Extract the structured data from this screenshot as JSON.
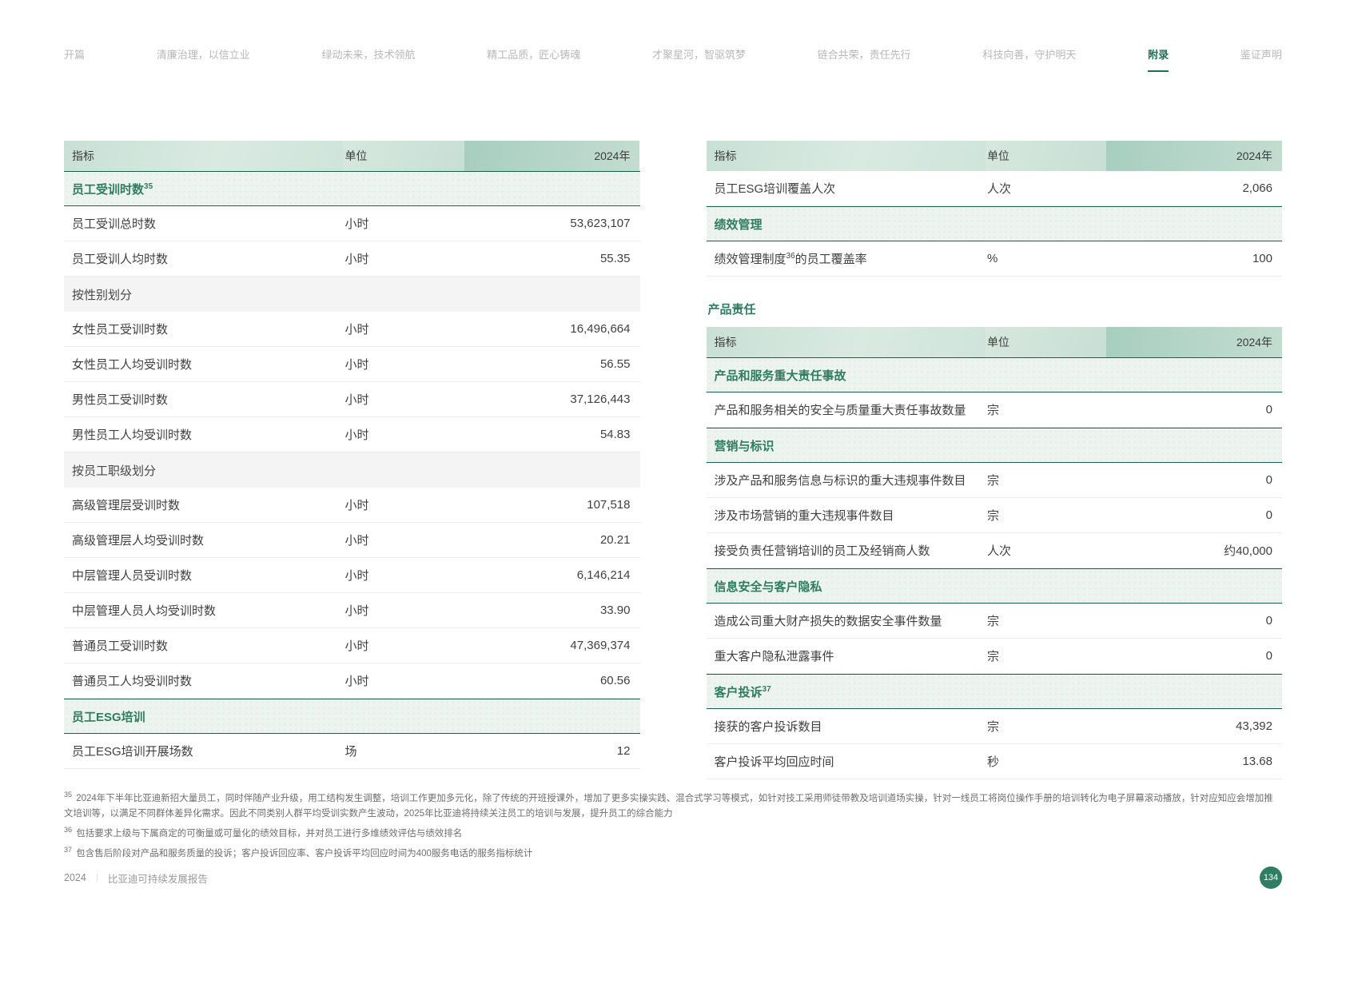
{
  "nav": {
    "items": [
      {
        "label": "开篇",
        "active": false
      },
      {
        "label": "清廉治理，以信立业",
        "active": false
      },
      {
        "label": "绿动未来，技术领航",
        "active": false
      },
      {
        "label": "精工品质，匠心铸魂",
        "active": false
      },
      {
        "label": "才聚星河，智驱筑梦",
        "active": false
      },
      {
        "label": "链合共荣，责任先行",
        "active": false
      },
      {
        "label": "科技向善，守护明天",
        "active": false
      },
      {
        "label": "附录",
        "active": true
      },
      {
        "label": "鉴证声明",
        "active": false
      }
    ]
  },
  "left_table": {
    "header": {
      "indicator": "指标",
      "unit": "单位",
      "year": "2024年"
    },
    "rows": [
      {
        "type": "section",
        "label": "员工受训时数",
        "sup": "35"
      },
      {
        "type": "data",
        "label": "员工受训总时数",
        "unit": "小时",
        "value": "53,623,107"
      },
      {
        "type": "data",
        "label": "员工受训人均时数",
        "unit": "小时",
        "value": "55.35"
      },
      {
        "type": "subsection",
        "label": "按性别划分"
      },
      {
        "type": "data",
        "label": "女性员工受训时数",
        "unit": "小时",
        "value": "16,496,664"
      },
      {
        "type": "data",
        "label": "女性员工人均受训时数",
        "unit": "小时",
        "value": "56.55"
      },
      {
        "type": "data",
        "label": "男性员工受训时数",
        "unit": "小时",
        "value": "37,126,443"
      },
      {
        "type": "data",
        "label": "男性员工人均受训时数",
        "unit": "小时",
        "value": "54.83"
      },
      {
        "type": "subsection",
        "label": "按员工职级划分"
      },
      {
        "type": "data",
        "label": "高级管理层受训时数",
        "unit": "小时",
        "value": "107,518"
      },
      {
        "type": "data",
        "label": "高级管理层人均受训时数",
        "unit": "小时",
        "value": "20.21"
      },
      {
        "type": "data",
        "label": "中层管理人员受训时数",
        "unit": "小时",
        "value": "6,146,214"
      },
      {
        "type": "data",
        "label": "中层管理人员人均受训时数",
        "unit": "小时",
        "value": "33.90"
      },
      {
        "type": "data",
        "label": "普通员工受训时数",
        "unit": "小时",
        "value": "47,369,374"
      },
      {
        "type": "data",
        "label": "普通员工人均受训时数",
        "unit": "小时",
        "value": "60.56"
      },
      {
        "type": "section",
        "label": "员工ESG培训"
      },
      {
        "type": "data",
        "label": "员工ESG培训开展场数",
        "unit": "场",
        "value": "12"
      }
    ]
  },
  "right_top_table": {
    "header": {
      "indicator": "指标",
      "unit": "单位",
      "year": "2024年"
    },
    "rows": [
      {
        "type": "data",
        "label": "员工ESG培训覆盖人次",
        "unit": "人次",
        "value": "2,066"
      },
      {
        "type": "section",
        "label": "绩效管理"
      },
      {
        "type": "data",
        "label": "绩效管理制度",
        "sup": "36",
        "label2": "的员工覆盖率",
        "unit": "%",
        "value": "100"
      }
    ]
  },
  "right_column": {
    "heading": "产品责任"
  },
  "right_bottom_table": {
    "header": {
      "indicator": "指标",
      "unit": "单位",
      "year": "2024年"
    },
    "rows": [
      {
        "type": "section",
        "label": "产品和服务重大责任事故"
      },
      {
        "type": "data",
        "label": "产品和服务相关的安全与质量重大责任事故数量",
        "unit": "宗",
        "value": "0"
      },
      {
        "type": "section",
        "label": "营销与标识"
      },
      {
        "type": "data",
        "label": "涉及产品和服务信息与标识的重大违规事件数目",
        "unit": "宗",
        "value": "0"
      },
      {
        "type": "data",
        "label": "涉及市场营销的重大违规事件数目",
        "unit": "宗",
        "value": "0"
      },
      {
        "type": "data",
        "label": "接受负责任营销培训的员工及经销商人数",
        "unit": "人次",
        "value": "约40,000"
      },
      {
        "type": "section",
        "label": "信息安全与客户隐私"
      },
      {
        "type": "data",
        "label": "造成公司重大财产损失的数据安全事件数量",
        "unit": "宗",
        "value": "0"
      },
      {
        "type": "data",
        "label": "重大客户隐私泄露事件",
        "unit": "宗",
        "value": "0"
      },
      {
        "type": "section",
        "label": "客户投诉",
        "sup": "37"
      },
      {
        "type": "data",
        "label": "接获的客户投诉数目",
        "unit": "宗",
        "value": "43,392"
      },
      {
        "type": "data",
        "label": "客户投诉平均回应时间",
        "unit": "秒",
        "value": "13.68"
      }
    ]
  },
  "footnotes": [
    {
      "marker": "35",
      "text": "2024年下半年比亚迪新招大量员工，同时伴随产业升级，用工结构发生调整，培训工作更加多元化，除了传统的开班授课外，增加了更多实操实践、混合式学习等模式，如针对技工采用师徒带教及培训道场实操，针对一线员工将岗位操作手册的培训转化为电子屏幕滚动播放，针对应知应会增加推文培训等，以满足不同群体差异化需求。因此不同类别人群平均受训实数产生波动，2025年比亚迪将持续关注员工的培训与发展，提升员工的综合能力"
    },
    {
      "marker": "36",
      "text": "包括要求上级与下属商定的可衡量或可量化的绩效目标，并对员工进行多维绩效评估与绩效排名"
    },
    {
      "marker": "37",
      "text": "包含售后阶段对产品和服务质量的投诉；客户投诉回应率、客户投诉平均回应时间为400服务电话的服务指标统计"
    }
  ],
  "footer": {
    "year": "2024",
    "divider": "｜",
    "title": "比亚迪可持续发展报告",
    "page_number": "134"
  },
  "colors": {
    "accent_green": "#1e6f55",
    "section_text_green": "#2f7c60",
    "section_border_green": "#17604a",
    "header_gradient_dark": "#a7cec0",
    "header_gradient_light": "#d9eae1",
    "badge_green": "#2e7e63",
    "inactive_nav_gray": "#b7b7b7"
  }
}
